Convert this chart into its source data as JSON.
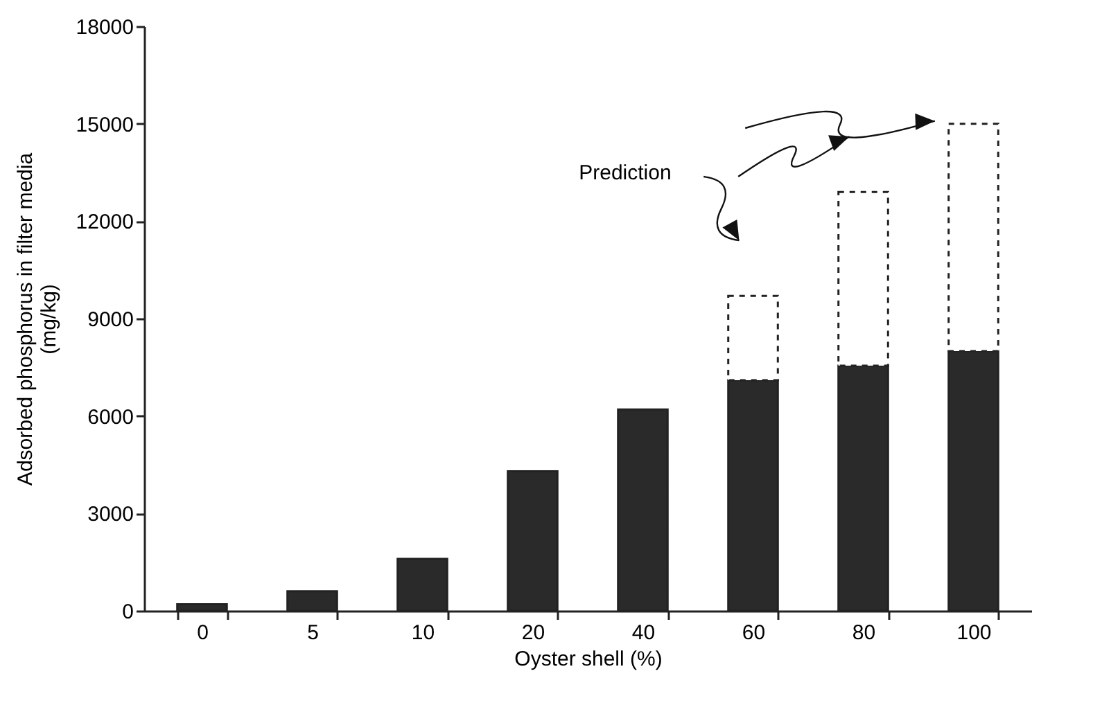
{
  "chart_data": {
    "type": "bar",
    "xlabel": "Oyster shell (%)",
    "ylabel": "Adsorbed phosphorus in filter media (mg/kg)",
    "categories": [
      "0",
      "5",
      "10",
      "20",
      "40",
      "60",
      "80",
      "100"
    ],
    "series": [
      {
        "color": "#2a2a2a",
        "line_style": "solid",
        "values": [
          200,
          600,
          1600,
          4300,
          6200,
          7100,
          7550,
          8000
        ]
      },
      {
        "color": "#ffffff",
        "line_style": "dashed",
        "values": [
          null,
          null,
          null,
          null,
          null,
          2600,
          5350,
          7000
        ]
      }
    ],
    "stacked": true,
    "ylim": [
      0,
      18000
    ],
    "yticks": [
      0,
      3000,
      6000,
      9000,
      12000,
      15000,
      18000
    ],
    "grid": false,
    "legend": false,
    "annotations": [
      "Prediction"
    ]
  }
}
